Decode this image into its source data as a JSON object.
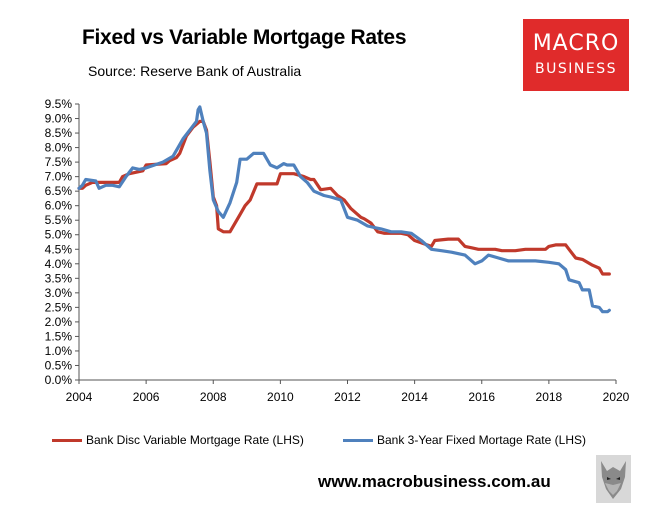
{
  "header": {
    "title": "Fixed vs Variable Mortgage Rates",
    "source": "Source: Reserve Bank of Australia"
  },
  "logo": {
    "line1": "MACRO",
    "line2": "BUSINESS"
  },
  "footer": {
    "url": "www.macrobusiness.com.au"
  },
  "chart_data": {
    "type": "line",
    "title": "Fixed vs Variable Mortgage Rates",
    "xlim": [
      2004,
      2020
    ],
    "ylim": [
      0,
      9.5
    ],
    "x_ticks": [
      "2004",
      "2006",
      "2008",
      "2010",
      "2012",
      "2014",
      "2016",
      "2018",
      "2020"
    ],
    "y_ticks": [
      "0.0%",
      "0.5%",
      "1.0%",
      "1.5%",
      "2.0%",
      "2.5%",
      "3.0%",
      "3.5%",
      "4.0%",
      "4.5%",
      "5.0%",
      "5.5%",
      "6.0%",
      "6.5%",
      "7.0%",
      "7.5%",
      "8.0%",
      "8.5%",
      "9.0%",
      "9.5%"
    ],
    "grid": false,
    "legend": "bottom",
    "series": [
      {
        "name": "Bank Disc Variable Mortgage Rate (LHS)",
        "color": "#c0392b",
        "x": [
          2004.0,
          2004.1,
          2004.2,
          2004.4,
          2005.2,
          2005.3,
          2005.5,
          2005.9,
          2006.0,
          2006.6,
          2006.7,
          2006.9,
          2007.0,
          2007.2,
          2007.4,
          2007.6,
          2007.7,
          2007.8,
          2007.9,
          2008.0,
          2008.1,
          2008.15,
          2008.3,
          2008.5,
          2008.8,
          2008.95,
          2009.1,
          2009.3,
          2009.6,
          2009.9,
          2010.0,
          2010.2,
          2010.4,
          2010.7,
          2010.9,
          2011.0,
          2011.2,
          2011.5,
          2011.7,
          2011.9,
          2012.1,
          2012.3,
          2012.4,
          2012.5,
          2012.7,
          2012.9,
          2013.1,
          2013.4,
          2013.6,
          2013.8,
          2014.0,
          2014.5,
          2014.6,
          2015.0,
          2015.3,
          2015.5,
          2015.7,
          2015.9,
          2016.0,
          2016.4,
          2016.6,
          2017.0,
          2017.3,
          2017.6,
          2017.9,
          2018.0,
          2018.2,
          2018.4,
          2018.5,
          2018.6,
          2018.8,
          2019.0,
          2019.3,
          2019.5,
          2019.6,
          2019.8
        ],
        "values": [
          6.6,
          6.6,
          6.7,
          6.8,
          6.8,
          7.0,
          7.1,
          7.2,
          7.4,
          7.45,
          7.55,
          7.65,
          7.8,
          8.4,
          8.7,
          8.9,
          8.9,
          8.6,
          7.5,
          6.3,
          6.0,
          5.2,
          5.1,
          5.1,
          5.7,
          6.0,
          6.2,
          6.75,
          6.75,
          6.75,
          7.1,
          7.1,
          7.1,
          7.0,
          6.9,
          6.9,
          6.55,
          6.6,
          6.35,
          6.2,
          5.9,
          5.7,
          5.6,
          5.55,
          5.4,
          5.1,
          5.05,
          5.05,
          5.05,
          5.0,
          4.8,
          4.6,
          4.8,
          4.85,
          4.85,
          4.6,
          4.55,
          4.5,
          4.5,
          4.5,
          4.45,
          4.45,
          4.5,
          4.5,
          4.5,
          4.6,
          4.65,
          4.65,
          4.65,
          4.5,
          4.2,
          4.15,
          3.95,
          3.85,
          3.65,
          3.65
        ]
      },
      {
        "name": "Bank 3-Year Fixed Mortage Rate (LHS)",
        "color": "#4f81bd",
        "x": [
          2004.0,
          2004.1,
          2004.2,
          2004.5,
          2004.6,
          2004.8,
          2005.0,
          2005.2,
          2005.4,
          2005.6,
          2005.8,
          2006.0,
          2006.5,
          2006.8,
          2007.0,
          2007.1,
          2007.3,
          2007.5,
          2007.55,
          2007.6,
          2007.7,
          2007.8,
          2007.9,
          2008.0,
          2008.15,
          2008.3,
          2008.5,
          2008.7,
          2008.8,
          2009.0,
          2009.2,
          2009.5,
          2009.7,
          2009.9,
          2010.1,
          2010.2,
          2010.4,
          2010.6,
          2010.8,
          2011.0,
          2011.3,
          2011.5,
          2011.8,
          2012.0,
          2012.3,
          2012.6,
          2012.8,
          2013.0,
          2013.3,
          2013.6,
          2013.9,
          2014.2,
          2014.5,
          2014.8,
          2015.1,
          2015.5,
          2015.8,
          2016.0,
          2016.2,
          2016.5,
          2016.8,
          2017.2,
          2017.6,
          2018.0,
          2018.3,
          2018.5,
          2018.6,
          2018.9,
          2019.0,
          2019.2,
          2019.3,
          2019.5,
          2019.6,
          2019.75,
          2019.8
        ],
        "values": [
          6.6,
          6.7,
          6.9,
          6.85,
          6.6,
          6.7,
          6.7,
          6.65,
          7.0,
          7.3,
          7.25,
          7.3,
          7.5,
          7.7,
          8.1,
          8.3,
          8.6,
          8.9,
          9.3,
          9.4,
          8.9,
          8.5,
          7.2,
          6.2,
          5.8,
          5.6,
          6.1,
          6.8,
          7.6,
          7.6,
          7.8,
          7.8,
          7.4,
          7.3,
          7.45,
          7.4,
          7.4,
          7.0,
          6.8,
          6.5,
          6.35,
          6.3,
          6.2,
          5.6,
          5.5,
          5.3,
          5.25,
          5.2,
          5.1,
          5.1,
          5.05,
          4.8,
          4.5,
          4.45,
          4.4,
          4.3,
          4.0,
          4.1,
          4.3,
          4.2,
          4.1,
          4.1,
          4.1,
          4.05,
          4.0,
          3.8,
          3.45,
          3.35,
          3.1,
          3.1,
          2.55,
          2.5,
          2.35,
          2.35,
          2.4
        ]
      }
    ]
  }
}
